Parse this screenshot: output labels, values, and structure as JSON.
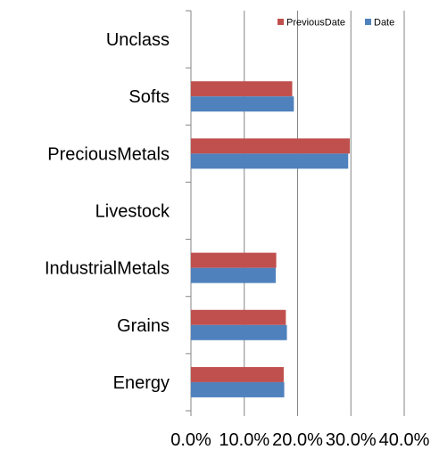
{
  "chart_data": {
    "type": "bar",
    "orientation": "horizontal",
    "categories": [
      "Unclass",
      "Softs",
      "PreciousMetals",
      "Livestock",
      "IndustrialMetals",
      "Grains",
      "Energy"
    ],
    "series": [
      {
        "name": "PreviousDate",
        "color": "#C0504D",
        "values": [
          0,
          19.0,
          29.8,
          0,
          16.0,
          17.8,
          17.4
        ]
      },
      {
        "name": "Date",
        "color": "#4F81BD",
        "values": [
          0,
          19.3,
          29.5,
          0,
          15.9,
          18.0,
          17.5
        ]
      }
    ],
    "x_ticks": [
      "0.0%",
      "10.0%",
      "20.0%",
      "30.0%",
      "40.0%"
    ],
    "xlim": [
      0,
      40
    ],
    "grid": true,
    "legend_position": "top-right"
  }
}
